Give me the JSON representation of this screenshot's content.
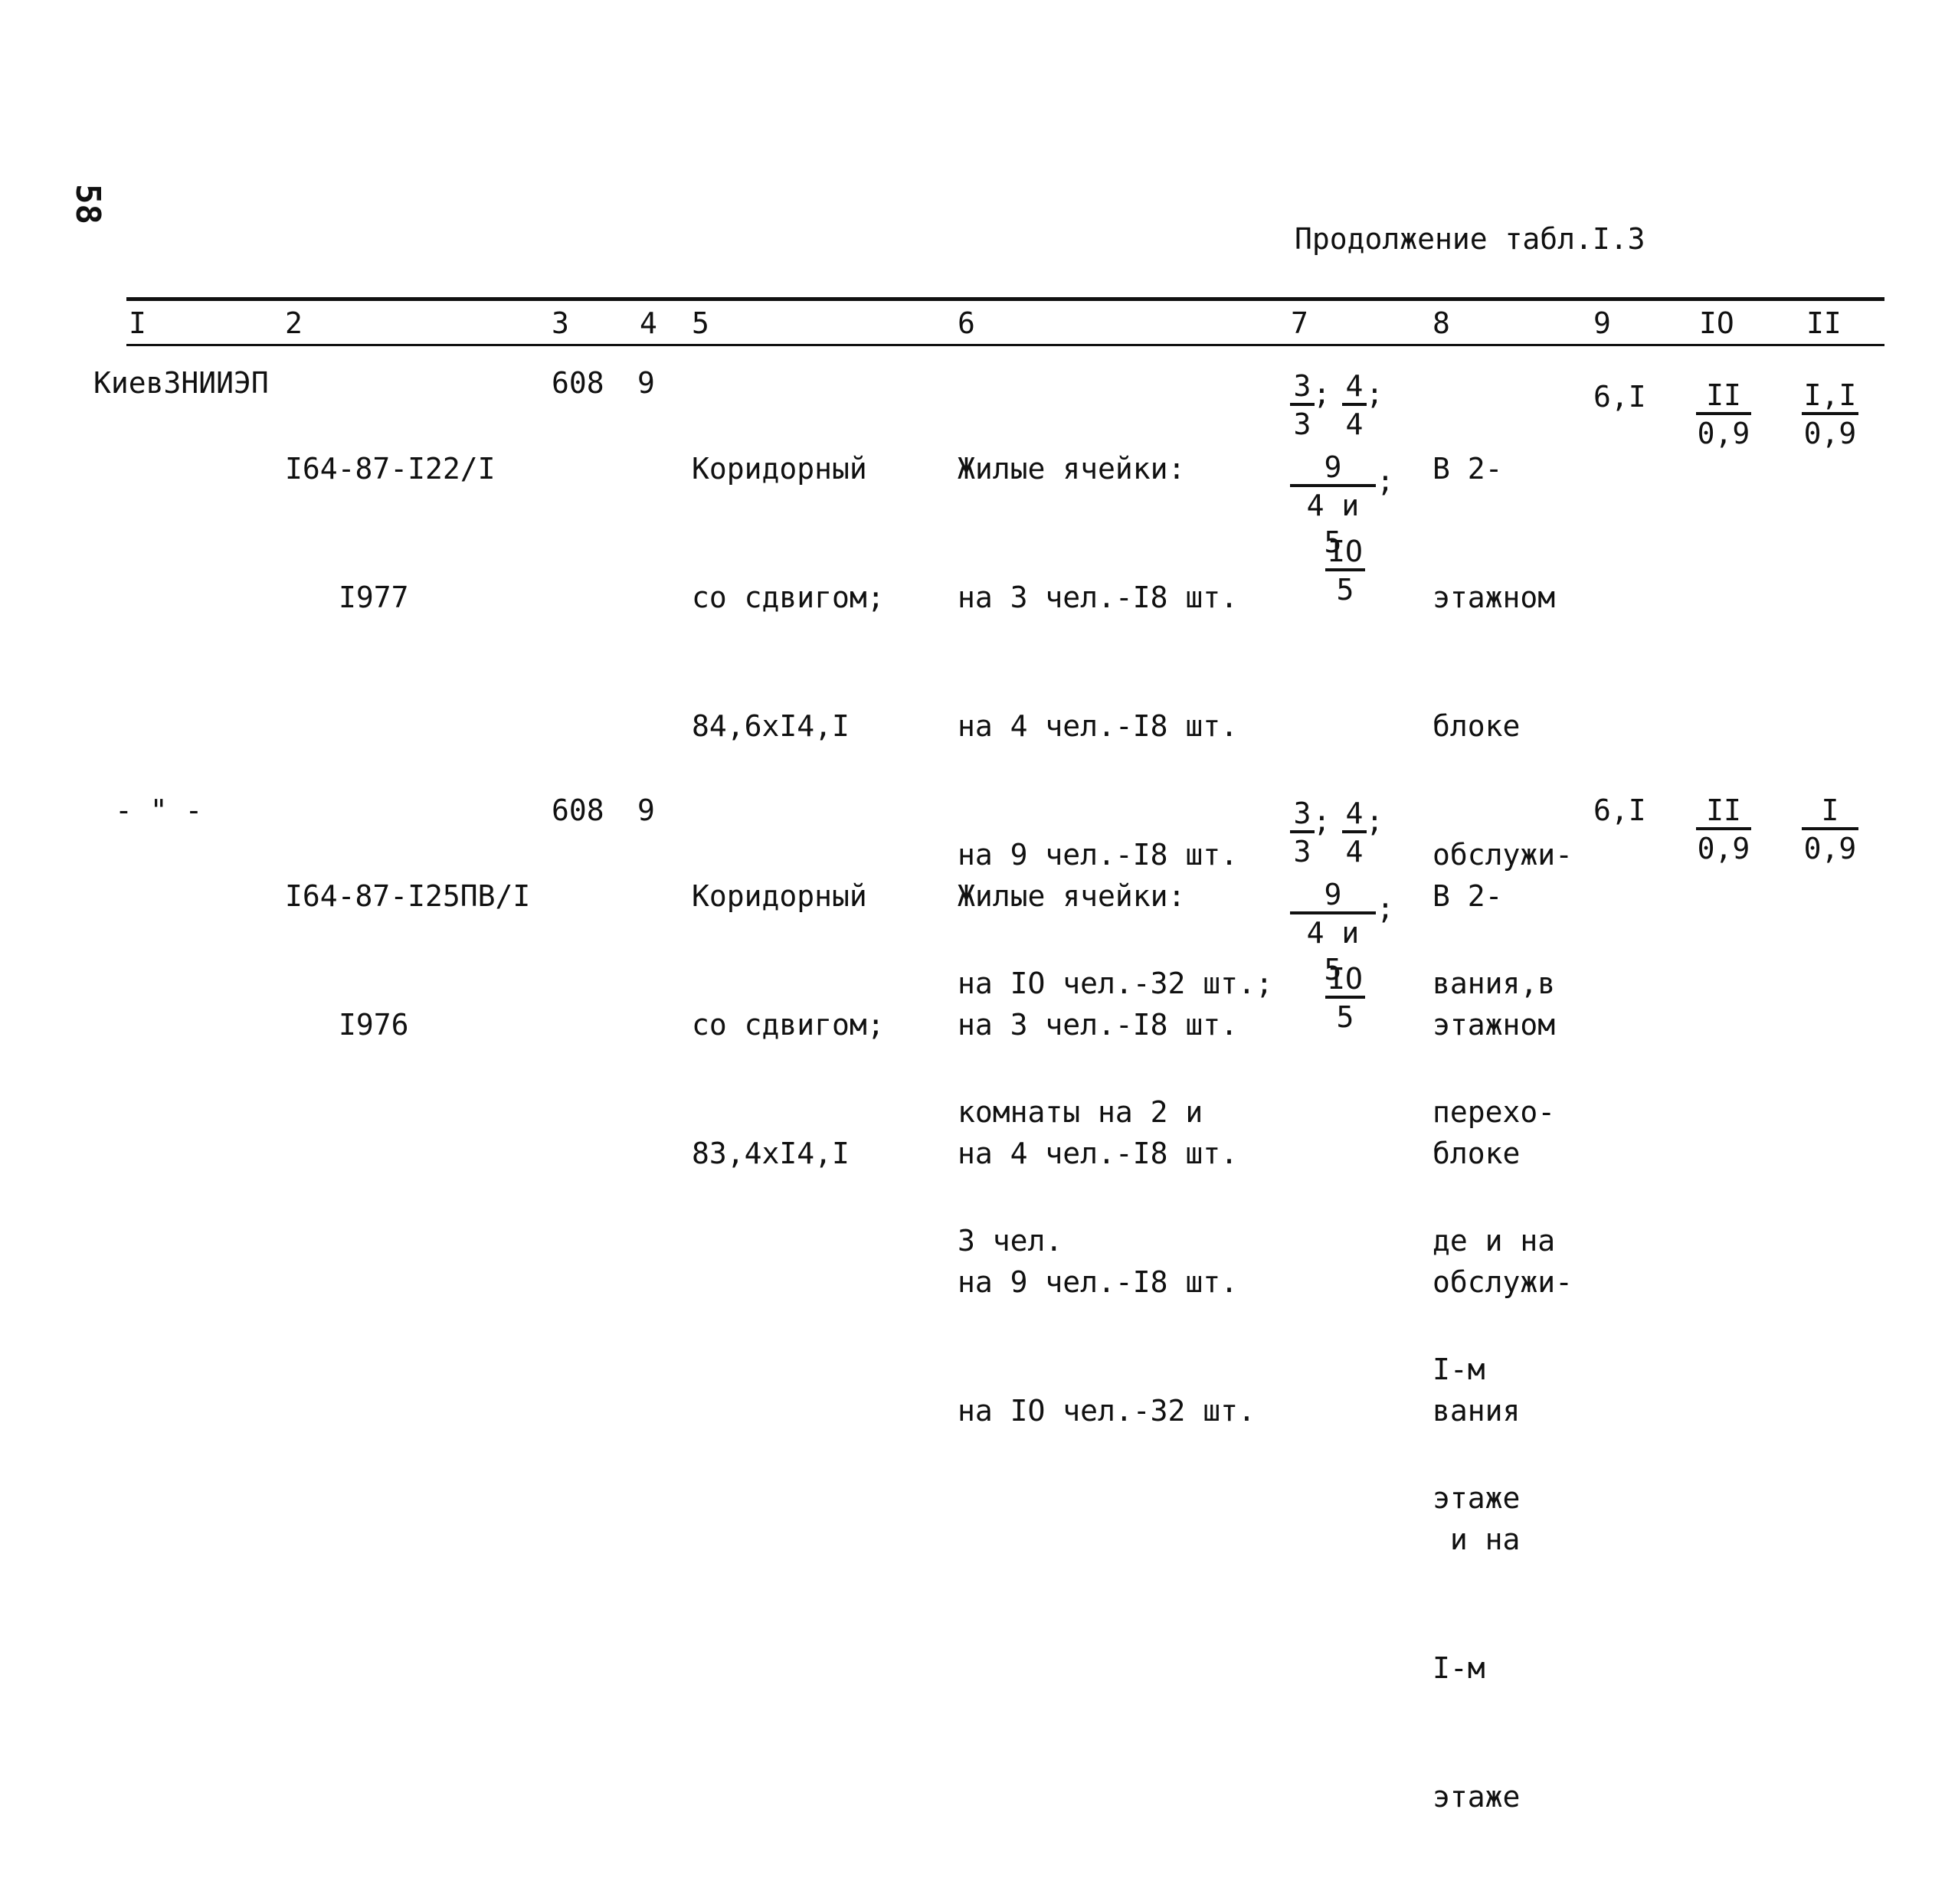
{
  "page": {
    "number": "58"
  },
  "caption": "Продолжение табл.I.3",
  "headers": [
    "I",
    "2",
    "3",
    "4",
    "5",
    "6",
    "7",
    "8",
    "9",
    "IO",
    "II"
  ],
  "rows": [
    {
      "c1": "КиевЗНИИЭП",
      "c2": [
        "I64-87-I22/I",
        "I977"
      ],
      "c3": "608",
      "c4": "9",
      "c5": [
        "Коридорный",
        "со сдвигом;",
        "84,6хI4,I"
      ],
      "c6": [
        "Жилые ячейки:",
        "на 3 чел.-I8 шт.",
        "на 4 чел.-I8 шт.",
        "на 9 чел.-I8 шт.",
        "на IO чел.-32 шт.;",
        "комнаты на 2 и",
        "3 чел."
      ],
      "c7": {
        "f1": {
          "num": "3",
          "den": "3"
        },
        "f2": {
          "num": "4",
          "den": "4"
        },
        "f3": {
          "num": "9",
          "den": "4 и 5"
        },
        "f4": {
          "num": "IO",
          "den": "5"
        },
        "sep": ";"
      },
      "c8": [
        "В 2-",
        "этажном",
        "блоке",
        "обслужи-",
        "вания,в",
        "перехо-",
        "де и на",
        "I-м",
        "этаже"
      ],
      "c9": "6,I",
      "c10": {
        "num": "II",
        "den": "0,9"
      },
      "c11": {
        "num": "I,I",
        "den": "0,9"
      }
    },
    {
      "c1": "- \" -",
      "c2": [
        "I64-87-I25ПВ/I",
        "I976"
      ],
      "c3": "608",
      "c4": "9",
      "c5": [
        "Коридорный",
        "со сдвигом;",
        "83,4хI4,I"
      ],
      "c6": [
        "Жилые ячейки:",
        "на 3 чел.-I8 шт.",
        "на 4 чел.-I8 шт.",
        "на 9 чел.-I8 шт.",
        "на IO чел.-32 шт."
      ],
      "c7": {
        "f1": {
          "num": "3",
          "den": "3"
        },
        "f2": {
          "num": "4",
          "den": "4"
        },
        "f3": {
          "num": "9",
          "den": "4 и 5"
        },
        "f4": {
          "num": "IO",
          "den": "5"
        },
        "sep": ";"
      },
      "c8": [
        "В 2-",
        "этажном",
        "блоке",
        "обслужи-",
        "вания",
        " и на",
        "I-м",
        "этаже"
      ],
      "c9": "6,I",
      "c10": {
        "num": "II",
        "den": "0,9"
      },
      "c11": {
        "num": "I",
        "den": "0,9"
      }
    }
  ]
}
